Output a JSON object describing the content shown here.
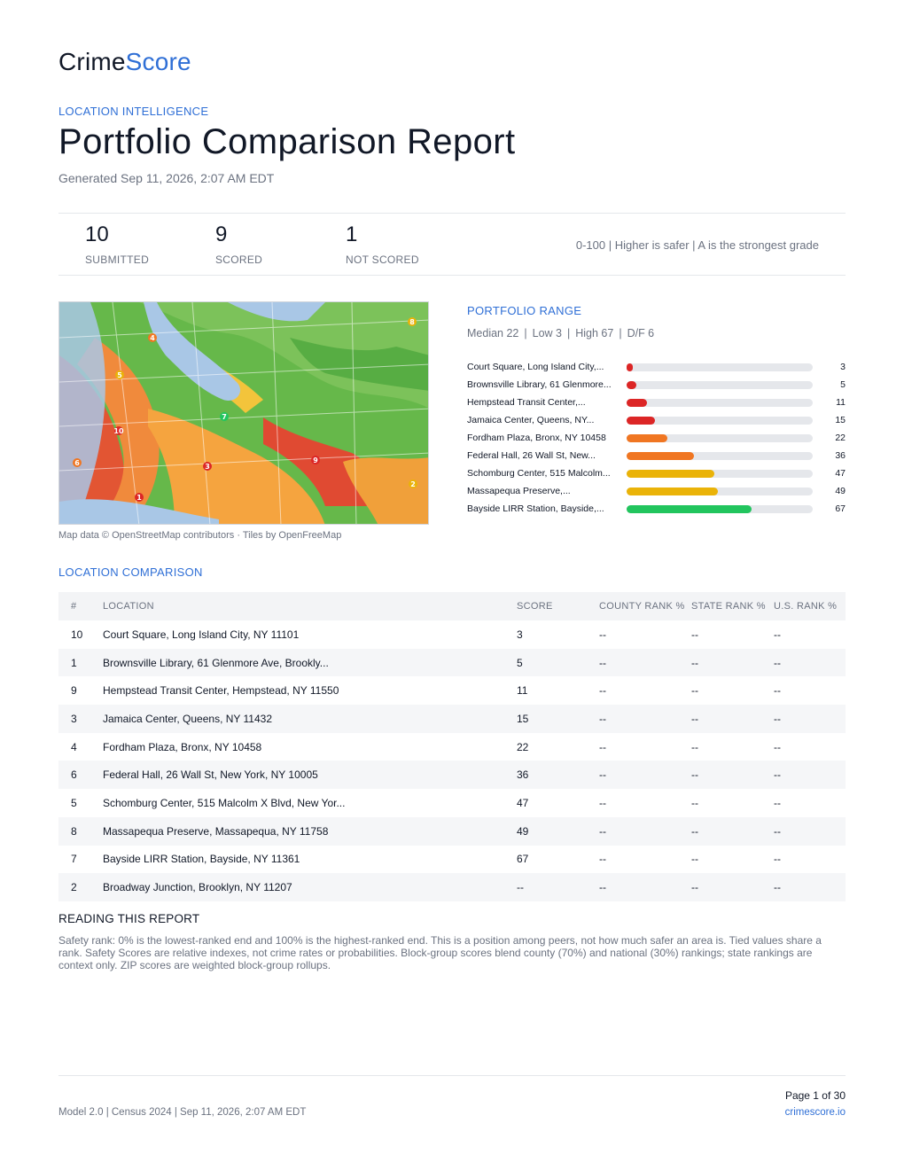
{
  "brand": {
    "name_part1": "Crime",
    "name_part2": "Score"
  },
  "header": {
    "eyebrow": "LOCATION INTELLIGENCE",
    "title": "Portfolio Comparison Report",
    "generated": "Generated Sep 11, 2026, 2:07 AM EDT"
  },
  "summary": {
    "stats": [
      {
        "value": "10",
        "label": "SUBMITTED"
      },
      {
        "value": "9",
        "label": "SCORED"
      },
      {
        "value": "1",
        "label": "NOT SCORED"
      }
    ],
    "scale_note": "0-100 | Higher is safer | A is the strongest grade"
  },
  "map": {
    "credit": "Map data © OpenStreetMap contributors · Tiles by OpenFreeMap",
    "markers": [
      "1",
      "2",
      "3",
      "4",
      "5",
      "6",
      "7",
      "8",
      "9",
      "10"
    ]
  },
  "portfolio_range": {
    "title": "PORTFOLIO RANGE",
    "median": "Median 22",
    "low": "Low 3",
    "high": "High 67",
    "df": "D/F 6",
    "separator": "|",
    "colors": {
      "red": "#dc2626",
      "orange": "#f07622",
      "yellow": "#eab308",
      "green": "#22c55e",
      "track": "#e5e7eb"
    },
    "items": [
      {
        "label": "Court Square, Long Island City,...",
        "score": 3,
        "color": "#dc2626"
      },
      {
        "label": "Brownsville Library, 61 Glenmore...",
        "score": 5,
        "color": "#dc2626"
      },
      {
        "label": "Hempstead Transit Center,...",
        "score": 11,
        "color": "#dc2626"
      },
      {
        "label": "Jamaica Center, Queens, NY...",
        "score": 15,
        "color": "#dc2626"
      },
      {
        "label": "Fordham Plaza, Bronx, NY 10458",
        "score": 22,
        "color": "#f07622"
      },
      {
        "label": "Federal Hall, 26 Wall St, New...",
        "score": 36,
        "color": "#f07622"
      },
      {
        "label": "Schomburg Center, 515 Malcolm...",
        "score": 47,
        "color": "#eab308"
      },
      {
        "label": "Massapequa Preserve,...",
        "score": 49,
        "color": "#eab308"
      },
      {
        "label": "Bayside LIRR Station, Bayside,...",
        "score": 67,
        "color": "#22c55e"
      }
    ]
  },
  "chart_data": {
    "type": "bar",
    "categories": [
      "Court Square, Long Island City,...",
      "Brownsville Library, 61 Glenmore...",
      "Hempstead Transit Center,...",
      "Jamaica Center, Queens, NY...",
      "Fordham Plaza, Bronx, NY 10458",
      "Federal Hall, 26 Wall St, New...",
      "Schomburg Center, 515 Malcolm...",
      "Massapequa Preserve,...",
      "Bayside LIRR Station, Bayside,..."
    ],
    "values": [
      3,
      5,
      11,
      15,
      22,
      36,
      47,
      49,
      67
    ],
    "title": "PORTFOLIO RANGE",
    "xlim": [
      0,
      100
    ],
    "orientation": "horizontal"
  },
  "comparison": {
    "title": "LOCATION COMPARISON",
    "columns": [
      "#",
      "LOCATION",
      "SCORE",
      "COUNTY RANK %",
      "STATE RANK %",
      "U.S. RANK %"
    ],
    "rows": [
      [
        "10",
        "Court Square, Long Island City, NY 11101",
        "3",
        "--",
        "--",
        "--"
      ],
      [
        "1",
        "Brownsville Library, 61 Glenmore Ave, Brookly...",
        "5",
        "--",
        "--",
        "--"
      ],
      [
        "9",
        "Hempstead Transit Center, Hempstead, NY 11550",
        "11",
        "--",
        "--",
        "--"
      ],
      [
        "3",
        "Jamaica Center, Queens, NY 11432",
        "15",
        "--",
        "--",
        "--"
      ],
      [
        "4",
        "Fordham Plaza, Bronx, NY 10458",
        "22",
        "--",
        "--",
        "--"
      ],
      [
        "6",
        "Federal Hall, 26 Wall St, New York, NY 10005",
        "36",
        "--",
        "--",
        "--"
      ],
      [
        "5",
        "Schomburg Center, 515 Malcolm X Blvd, New Yor...",
        "47",
        "--",
        "--",
        "--"
      ],
      [
        "8",
        "Massapequa Preserve, Massapequa, NY 11758",
        "49",
        "--",
        "--",
        "--"
      ],
      [
        "7",
        "Bayside LIRR Station, Bayside, NY 11361",
        "67",
        "--",
        "--",
        "--"
      ],
      [
        "2",
        "Broadway Junction, Brooklyn, NY 11207",
        "--",
        "--",
        "--",
        "--"
      ]
    ]
  },
  "reading": {
    "title": "READING THIS REPORT",
    "body": "Safety rank: 0% is the lowest-ranked end and 100% is the highest-ranked end. This is a position among peers, not how much safer an area is. Tied values share a rank. Safety Scores are relative indexes, not crime rates or probabilities. Block-group scores blend county (70%) and national (30%) rankings; state rankings are context only. ZIP scores are weighted block-group rollups."
  },
  "footer": {
    "page": "Page 1 of 30",
    "left": "Model 2.0 | Census 2024 | Sep 11, 2026, 2:07 AM EDT",
    "right": "crimescore.io"
  }
}
